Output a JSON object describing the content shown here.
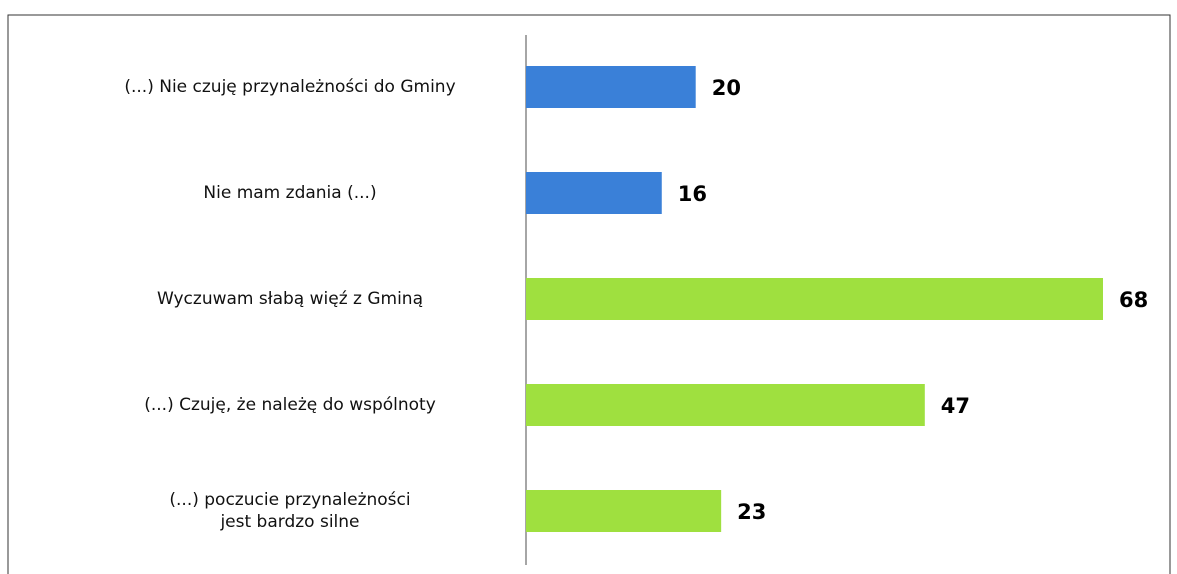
{
  "chart_data": {
    "type": "bar",
    "orientation": "horizontal",
    "categories": [
      "(...) Nie czuję przynależności do Gminy",
      "Nie mam zdania (...)",
      "Wyczuwam słabą więź z Gminą",
      "(...) Czuję, że należę do wspólnoty",
      "(...) poczucie przynależności\njest bardzo silne"
    ],
    "values": [
      20,
      16,
      68,
      47,
      23
    ],
    "colors": [
      "#3a80d8",
      "#3a80d8",
      "#9fe03f",
      "#9fe03f",
      "#9fe03f"
    ]
  }
}
